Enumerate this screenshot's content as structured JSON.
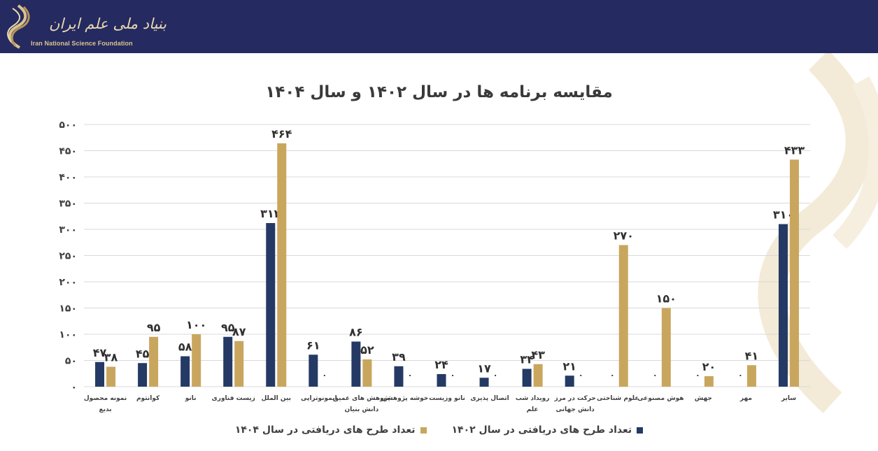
{
  "header": {
    "logo_fa": "بنیاد ملی علم ایران",
    "logo_en": "Iran National Science Foundation",
    "background": "#252a60",
    "logo_color": "#d9c48e"
  },
  "colors": {
    "series_1402": "#243a64",
    "series_1404": "#c9a65e",
    "grid": "#d9d9d9"
  },
  "chart_data": {
    "type": "bar",
    "title": "مقایسه برنامه ها در سال ۱۴۰۲ و سال ۱۴۰۴",
    "categories": [
      "نمونه محصول بدیع",
      "کوانتوم",
      "نانو",
      "زیست فناوری",
      "بین الملل",
      "ایمونوتراپی",
      "پژوهش های عمیق دانش بنیان",
      "خوشه پژوهشی",
      "نانو وزیست",
      "اتصال پذیری",
      "رویداد شب علم",
      "حرکت در مرز دانش جهانی",
      "علوم شناختی",
      "هوش مصنوعی",
      "جهش",
      "مهر",
      "سایر"
    ],
    "series": [
      {
        "name": "تعداد طرح های دریافتی در سال ۱۴۰۲",
        "color": "#243a64",
        "values": [
          47,
          45,
          58,
          95,
          312,
          61,
          86,
          39,
          24,
          17,
          34,
          21,
          0,
          0,
          0,
          0,
          310
        ],
        "labels": [
          "۴۷",
          "۴۵",
          "۵۸",
          "۹۵",
          "۳۱۲",
          "۶۱",
          "۸۶",
          "۳۹",
          "۲۴",
          "۱۷",
          "۳۴",
          "۲۱",
          "۰",
          "۰",
          "۰",
          "۰",
          "۳۱۰"
        ]
      },
      {
        "name": "تعداد طرح های دریافتی در سال ۱۴۰۴",
        "color": "#c9a65e",
        "values": [
          38,
          95,
          100,
          87,
          464,
          0,
          52,
          0,
          0,
          0,
          43,
          0,
          270,
          150,
          20,
          41,
          433
        ],
        "labels": [
          "۳۸",
          "۹۵",
          "۱۰۰",
          "۸۷",
          "۴۶۴",
          "۰",
          "۵۲",
          "۰",
          "۰",
          "۰",
          "۴۳",
          "۰",
          "۲۷۰",
          "۱۵۰",
          "۲۰",
          "۴۱",
          "۴۳۳"
        ]
      }
    ],
    "yticks": [
      0,
      50,
      100,
      150,
      200,
      250,
      300,
      350,
      400,
      450,
      500
    ],
    "ytick_labels": [
      "۰",
      "۵۰",
      "۱۰۰",
      "۱۵۰",
      "۲۰۰",
      "۲۵۰",
      "۳۰۰",
      "۳۵۰",
      "۴۰۰",
      "۴۵۰",
      "۵۰۰"
    ],
    "ylim": [
      0,
      500
    ],
    "grid": true,
    "legend_position": "bottom"
  }
}
